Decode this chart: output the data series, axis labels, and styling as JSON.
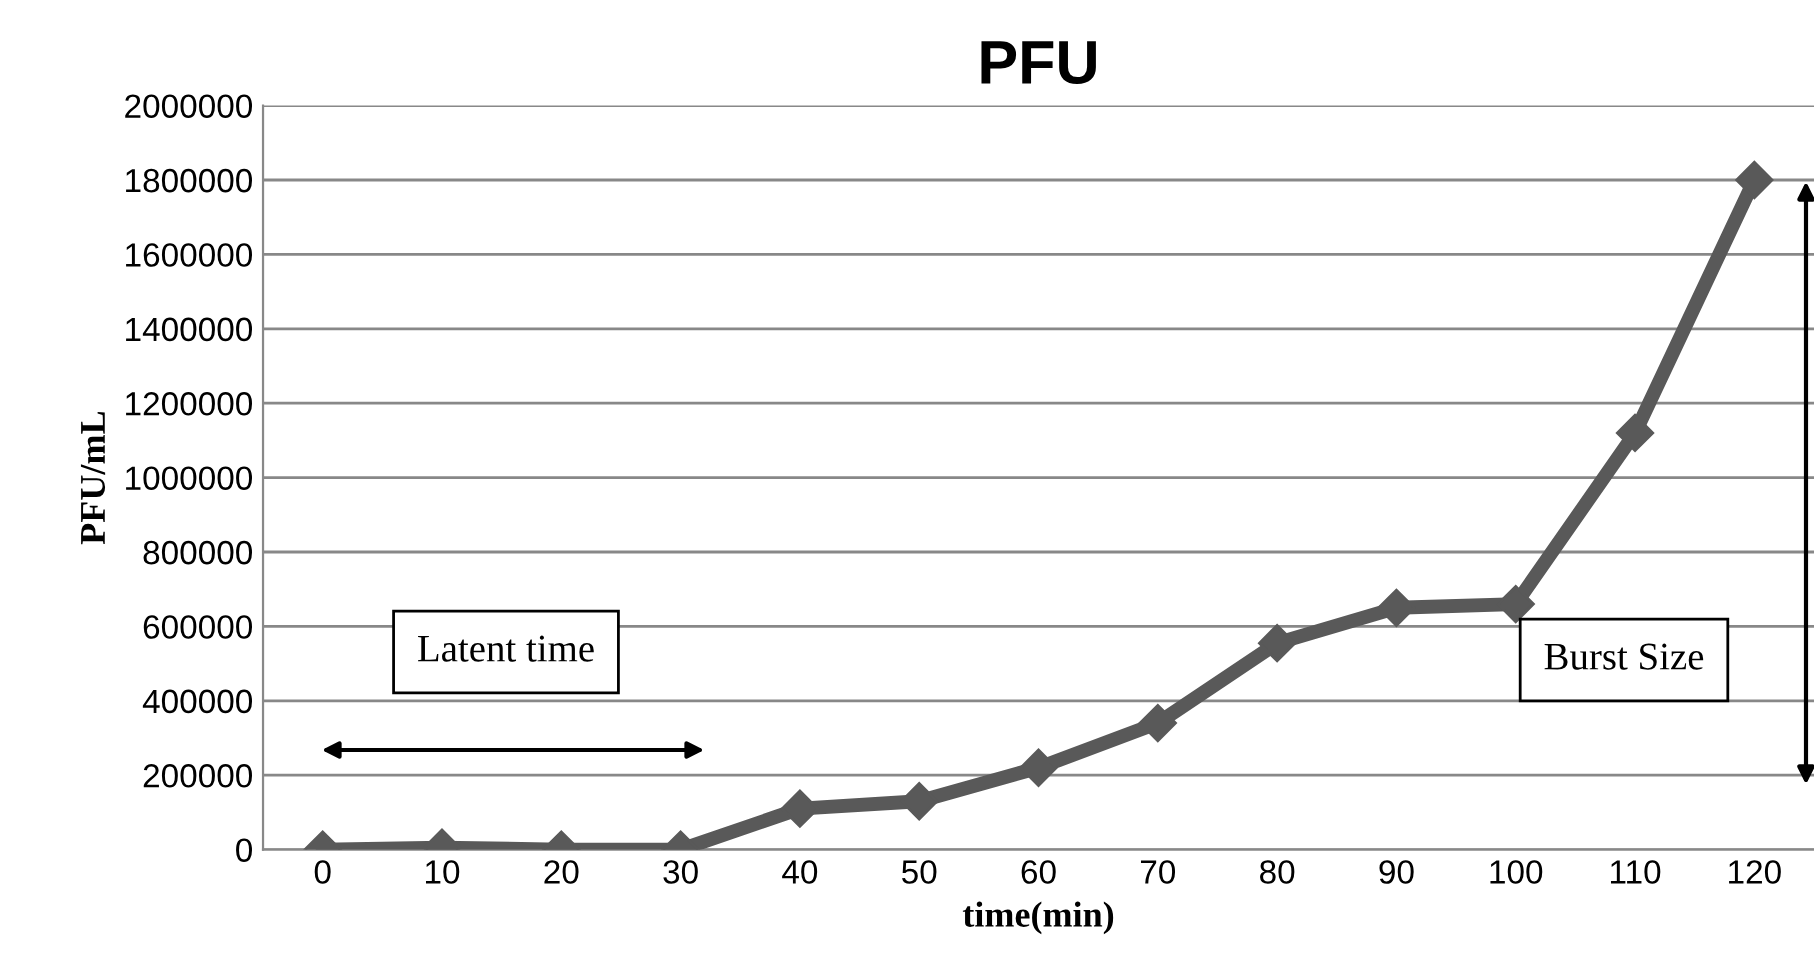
{
  "chart_data": {
    "type": "line",
    "title": "PFU",
    "xlabel": "time(min)",
    "ylabel": "PFU/mL",
    "categories": [
      "0",
      "10",
      "20",
      "30",
      "40",
      "50",
      "60",
      "70",
      "80",
      "90",
      "100",
      "110",
      "120"
    ],
    "series": [
      {
        "color": "#595959",
        "values": [
          0,
          5000,
          0,
          0,
          110000,
          130000,
          220000,
          340000,
          555000,
          650000,
          660000,
          1120000,
          1800000
        ]
      }
    ],
    "ylim": [
      0,
      2000000
    ],
    "yticks": [
      0,
      200000,
      400000,
      600000,
      800000,
      1000000,
      1200000,
      1400000,
      1600000,
      1800000,
      2000000
    ],
    "grid": "y",
    "marker": "diamond",
    "line_style": "solid",
    "legend": false,
    "annotations": [
      "Latent time",
      "Burst Size"
    ]
  }
}
